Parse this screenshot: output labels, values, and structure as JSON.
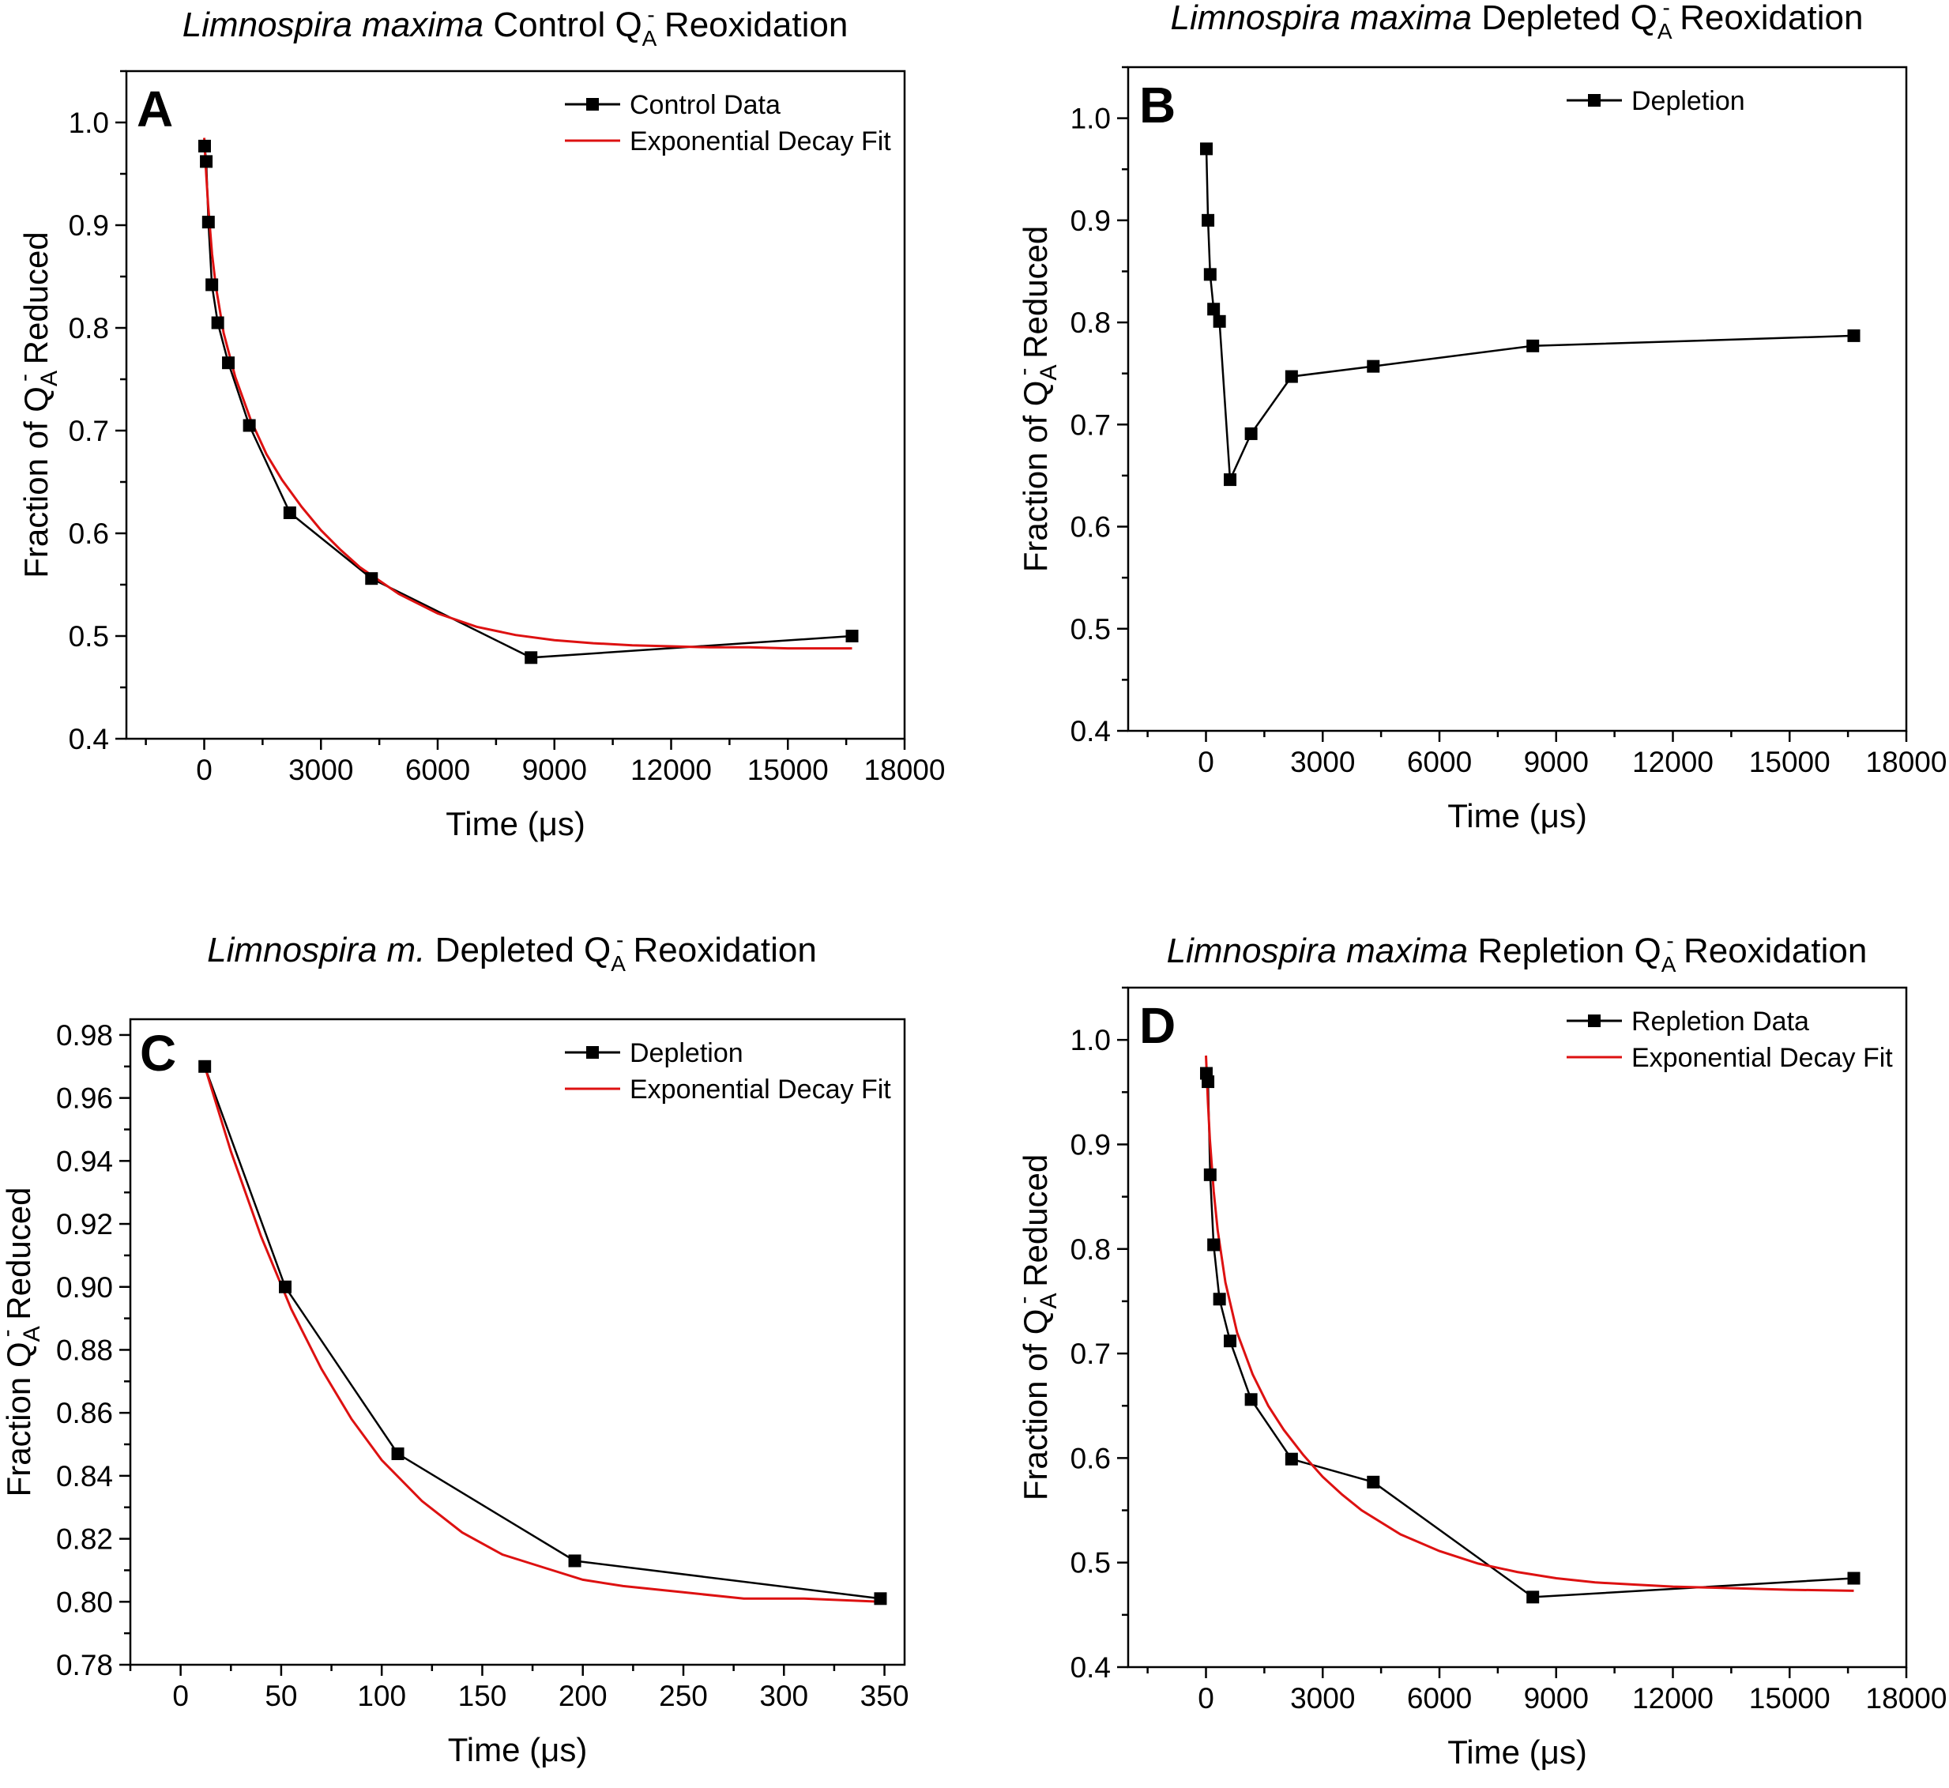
{
  "colors": {
    "data": "#000000",
    "fit": "#dd1111",
    "axes": "#000000",
    "background": "#ffffff"
  },
  "chart_data": [
    {
      "id": "A",
      "type": "line",
      "panel_letter": "A",
      "title": {
        "italic": "Limnospira maxima",
        "text": "Control Q",
        "sub": "A",
        "sup": "-",
        "after": "Reoxidation"
      },
      "xlabel": "Time (μs)",
      "ylabel": {
        "pre": "Fraction of Q",
        "sub": "A",
        "sup": "-",
        "post": "Reduced"
      },
      "xlim": [
        -2000,
        18000
      ],
      "ylim": [
        0.4,
        1.05
      ],
      "xticks": [
        0,
        3000,
        6000,
        9000,
        12000,
        15000,
        18000
      ],
      "xtick_labels": [
        "0",
        "3000",
        "6000",
        "9000",
        "12000",
        "15000",
        "18000"
      ],
      "yticks": [
        0.4,
        0.5,
        0.6,
        0.7,
        0.8,
        0.9,
        1.0
      ],
      "ytick_labels": [
        "0.4",
        "0.5",
        "0.6",
        "0.7",
        "0.8",
        "0.9",
        "1.0"
      ],
      "legend_position": "top-right",
      "series": [
        {
          "name": "Control Data",
          "kind": "data",
          "x": [
            10,
            52,
            108,
            196,
            348,
            620,
            1160,
            2200,
            4300,
            8400,
            16650
          ],
          "y": [
            0.977,
            0.962,
            0.903,
            0.842,
            0.805,
            0.766,
            0.705,
            0.62,
            0.556,
            0.479,
            0.5
          ]
        },
        {
          "name": "Exponential Decay Fit",
          "kind": "fit",
          "x": [
            0,
            50,
            100,
            200,
            300,
            500,
            800,
            1200,
            1600,
            2000,
            2500,
            3000,
            3500,
            4000,
            5000,
            6000,
            7000,
            8000,
            9000,
            10000,
            11000,
            12000,
            13000,
            14000,
            15000,
            16650
          ],
          "y": [
            0.985,
            0.95,
            0.92,
            0.872,
            0.84,
            0.795,
            0.752,
            0.71,
            0.677,
            0.652,
            0.626,
            0.603,
            0.584,
            0.567,
            0.541,
            0.522,
            0.509,
            0.501,
            0.496,
            0.493,
            0.491,
            0.49,
            0.489,
            0.489,
            0.488,
            0.488
          ]
        }
      ]
    },
    {
      "id": "B",
      "type": "line",
      "panel_letter": "B",
      "title": {
        "italic": "Limnospira maxima",
        "text": "Depleted Q",
        "sub": "A",
        "sup": "-",
        "after": "Reoxidation"
      },
      "xlabel": "Time (μs)",
      "ylabel": {
        "pre": "Fraction of Q",
        "sub": "A",
        "sup": "-",
        "post": "Reduced"
      },
      "xlim": [
        -2000,
        18000
      ],
      "ylim": [
        0.4,
        1.05
      ],
      "xticks": [
        0,
        3000,
        6000,
        9000,
        12000,
        15000,
        18000
      ],
      "xtick_labels": [
        "0",
        "3000",
        "6000",
        "9000",
        "12000",
        "15000",
        "18000"
      ],
      "yticks": [
        0.4,
        0.5,
        0.6,
        0.7,
        0.8,
        0.9,
        1.0
      ],
      "ytick_labels": [
        "0.4",
        "0.5",
        "0.6",
        "0.7",
        "0.8",
        "0.9",
        "1.0"
      ],
      "legend_position": "top-right",
      "series": [
        {
          "name": "Depletion",
          "kind": "data",
          "x": [
            10,
            52,
            108,
            196,
            348,
            620,
            1160,
            2200,
            4300,
            8400,
            16650
          ],
          "y": [
            0.97,
            0.9,
            0.847,
            0.813,
            0.801,
            0.646,
            0.691,
            0.747,
            0.757,
            0.777,
            0.787
          ]
        }
      ]
    },
    {
      "id": "C",
      "type": "line",
      "panel_letter": "C",
      "title": {
        "italic": "Limnospira m.",
        "text": "Depleted Q",
        "sub": "A",
        "sup": "-",
        "after": "Reoxidation"
      },
      "xlabel": "Time (μs)",
      "ylabel": {
        "pre": "Fraction Q",
        "sub": "A",
        "sup": "-",
        "post": "Reduced"
      },
      "xlim": [
        -25,
        360
      ],
      "ylim": [
        0.78,
        0.985
      ],
      "xticks": [
        0,
        50,
        100,
        150,
        200,
        250,
        300,
        350
      ],
      "xtick_labels": [
        "0",
        "50",
        "100",
        "150",
        "200",
        "250",
        "300",
        "350"
      ],
      "yticks": [
        0.78,
        0.8,
        0.82,
        0.84,
        0.86,
        0.88,
        0.9,
        0.92,
        0.94,
        0.96,
        0.98
      ],
      "ytick_labels": [
        "0.78",
        "0.80",
        "0.82",
        "0.84",
        "0.86",
        "0.88",
        "0.90",
        "0.92",
        "0.94",
        "0.96",
        "0.98"
      ],
      "legend_position": "top-right",
      "series": [
        {
          "name": "Depletion",
          "kind": "data",
          "x": [
            12,
            52,
            108,
            196,
            348
          ],
          "y": [
            0.97,
            0.9,
            0.847,
            0.813,
            0.801
          ]
        },
        {
          "name": "Exponential Decay Fit",
          "kind": "fit",
          "x": [
            12,
            25,
            40,
            55,
            70,
            85,
            100,
            120,
            140,
            160,
            180,
            200,
            220,
            250,
            280,
            310,
            348
          ],
          "y": [
            0.97,
            0.943,
            0.916,
            0.893,
            0.874,
            0.858,
            0.845,
            0.832,
            0.822,
            0.815,
            0.811,
            0.807,
            0.805,
            0.803,
            0.801,
            0.801,
            0.8
          ]
        }
      ]
    },
    {
      "id": "D",
      "type": "line",
      "panel_letter": "D",
      "title": {
        "italic": "Limnospira maxima",
        "text": "Repletion Q",
        "sub": "A",
        "sup": "-",
        "after": "Reoxidation"
      },
      "xlabel": "Time (μs)",
      "ylabel": {
        "pre": "Fraction of Q",
        "sub": "A",
        "sup": "-",
        "post": "Reduced"
      },
      "xlim": [
        -2000,
        18000
      ],
      "ylim": [
        0.4,
        1.05
      ],
      "xticks": [
        0,
        3000,
        6000,
        9000,
        12000,
        15000,
        18000
      ],
      "xtick_labels": [
        "0",
        "3000",
        "6000",
        "9000",
        "12000",
        "15000",
        "18000"
      ],
      "yticks": [
        0.4,
        0.5,
        0.6,
        0.7,
        0.8,
        0.9,
        1.0
      ],
      "ytick_labels": [
        "0.4",
        "0.5",
        "0.6",
        "0.7",
        "0.8",
        "0.9",
        "1.0"
      ],
      "legend_position": "top-right",
      "series": [
        {
          "name": "Repletion Data",
          "kind": "data",
          "x": [
            10,
            52,
            108,
            196,
            348,
            620,
            1160,
            2200,
            4300,
            8400,
            16650
          ],
          "y": [
            0.968,
            0.96,
            0.871,
            0.804,
            0.752,
            0.712,
            0.656,
            0.599,
            0.577,
            0.467,
            0.485
          ]
        },
        {
          "name": "Exponential Decay Fit",
          "kind": "fit",
          "x": [
            0,
            50,
            100,
            200,
            300,
            500,
            800,
            1200,
            1600,
            2000,
            2500,
            3000,
            3500,
            4000,
            5000,
            6000,
            7000,
            8000,
            9000,
            10000,
            11000,
            12000,
            13000,
            14000,
            15000,
            16650
          ],
          "y": [
            0.985,
            0.94,
            0.905,
            0.855,
            0.818,
            0.768,
            0.72,
            0.68,
            0.65,
            0.627,
            0.603,
            0.582,
            0.565,
            0.55,
            0.527,
            0.511,
            0.499,
            0.491,
            0.485,
            0.481,
            0.479,
            0.477,
            0.476,
            0.475,
            0.474,
            0.473
          ]
        }
      ]
    }
  ]
}
